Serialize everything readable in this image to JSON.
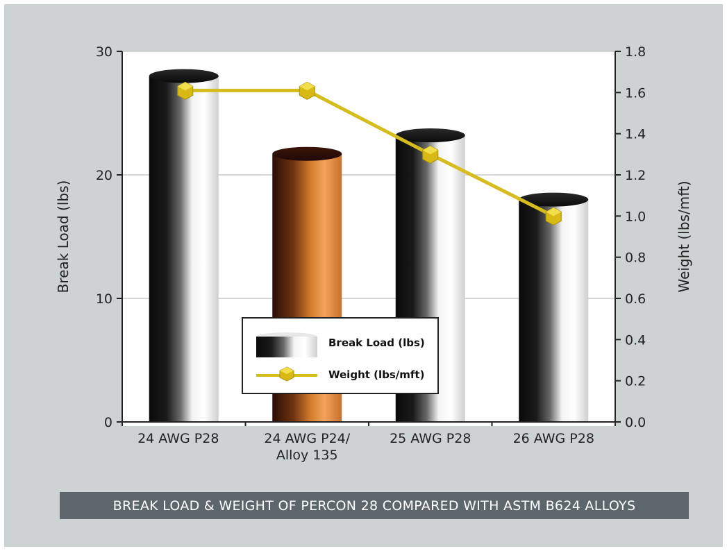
{
  "chart_data": {
    "type": "bar",
    "categories": [
      "24 AWG P28",
      "24 AWG P24/\nAlloy 135",
      "25 AWG P28",
      "26 AWG P28"
    ],
    "series": [
      {
        "name": "Break Load (lbs)",
        "type": "bar",
        "axis": "left",
        "values": [
          28,
          21.7,
          23.2,
          18
        ]
      },
      {
        "name": "Weight (lbs/mft)",
        "type": "line",
        "axis": "right",
        "values": [
          1.61,
          1.61,
          1.3,
          1.0
        ]
      }
    ],
    "ylabel_left": "Break Load (lbs)",
    "ylabel_right": "Weight (lbs/mft)",
    "ylim_left": [
      0,
      30
    ],
    "ylim_right": [
      0,
      1.8
    ],
    "yticks_left": [
      "0",
      "10",
      "20",
      "30"
    ],
    "yticks_right": [
      "0.0",
      "0.2",
      "0.4",
      "0.6",
      "0.8",
      "1.0",
      "1.2",
      "1.4",
      "1.6",
      "1.8"
    ],
    "grid": true,
    "legend_placement": "bottom-center"
  },
  "caption": "BREAK LOAD & WEIGHT OF PERCON 28 COMPARED WITH ASTM B624 ALLOYS",
  "colors": {
    "panel": "#cdd2d3",
    "caption_bg": "#5d666a",
    "line": "#d4bd1c",
    "marker": "#e3c91a",
    "silver_bar": "#d8d8d8",
    "copper_bar": "#c8702a"
  }
}
